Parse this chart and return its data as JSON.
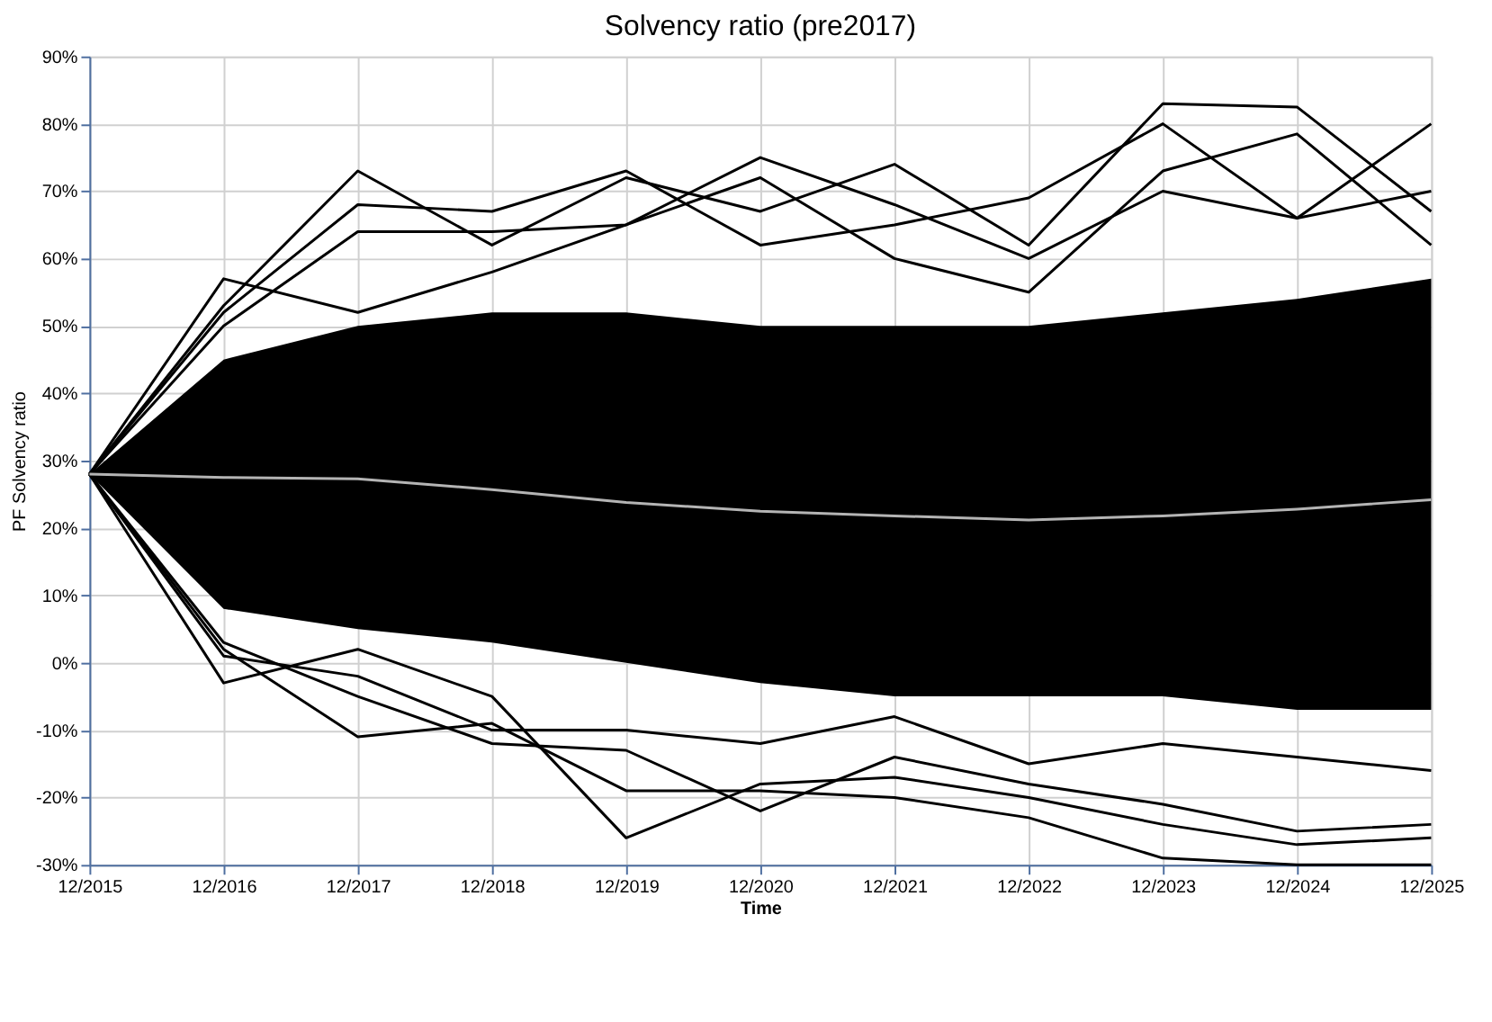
{
  "chart_data": {
    "type": "line",
    "title": "Solvency ratio (pre2017)",
    "xlabel": "Time",
    "ylabel": "PF Solvency ratio",
    "categories": [
      "12/2015",
      "12/2016",
      "12/2017",
      "12/2018",
      "12/2019",
      "12/2020",
      "12/2021",
      "12/2022",
      "12/2023",
      "12/2024",
      "12/2025"
    ],
    "ylim": [
      -30,
      90
    ],
    "yticks": [
      {
        "value": -30,
        "label": "-30%"
      },
      {
        "value": -20,
        "label": "-20%"
      },
      {
        "value": -10,
        "label": "-10%"
      },
      {
        "value": 0,
        "label": "0%"
      },
      {
        "value": 10,
        "label": "10%"
      },
      {
        "value": 20,
        "label": "20%"
      },
      {
        "value": 30,
        "label": "30%"
      },
      {
        "value": 40,
        "label": "40%"
      },
      {
        "value": 50,
        "label": "50%"
      },
      {
        "value": 60,
        "label": "60%"
      },
      {
        "value": 70,
        "label": "70%"
      },
      {
        "value": 80,
        "label": "80%"
      },
      {
        "value": 90,
        "label": "90%"
      }
    ],
    "grid": true,
    "marker": "none",
    "line_style": "solid",
    "series": [
      {
        "color": "#000000",
        "values": [
          28,
          57,
          52,
          58,
          65,
          75,
          68,
          60,
          70,
          66,
          70
        ]
      },
      {
        "color": "#000000",
        "values": [
          28,
          53,
          73,
          62,
          72,
          67,
          74,
          62,
          83,
          82.5,
          67
        ]
      },
      {
        "color": "#000000",
        "values": [
          28,
          52,
          68,
          67,
          73,
          62,
          65,
          69,
          80,
          66,
          80
        ]
      },
      {
        "color": "#000000",
        "values": [
          28,
          50,
          64,
          64,
          65,
          72,
          60,
          55,
          73,
          78.5,
          62
        ]
      },
      {
        "color": "#000000",
        "values": [
          28,
          -3,
          2,
          -5,
          -26,
          -18,
          -17,
          -20,
          -24,
          -27,
          -26
        ]
      },
      {
        "color": "#000000",
        "values": [
          28,
          2,
          -11,
          -9,
          -19,
          -19,
          -20,
          -23,
          -29,
          -30,
          -30
        ]
      },
      {
        "color": "#000000",
        "values": [
          28,
          3,
          -5,
          -12,
          -13,
          -22,
          -14,
          -18,
          -21,
          -25,
          -24
        ]
      },
      {
        "color": "#000000",
        "values": [
          28,
          1,
          -2,
          -10,
          -10,
          -12,
          -8,
          -15,
          -12,
          -14,
          -16
        ]
      },
      {
        "color": "#b4b4b4",
        "values": [
          28,
          27.5,
          27.3,
          25.7,
          23.8,
          22.5,
          21.8,
          21.2,
          21.8,
          22.8,
          24.2
        ],
        "lower": [
          28,
          8,
          5,
          3,
          0,
          -3,
          -5,
          -5,
          -5,
          -7,
          -7
        ],
        "upper": [
          28,
          45,
          50,
          52,
          52,
          50,
          50,
          50,
          52,
          54,
          57
        ]
      }
    ]
  }
}
